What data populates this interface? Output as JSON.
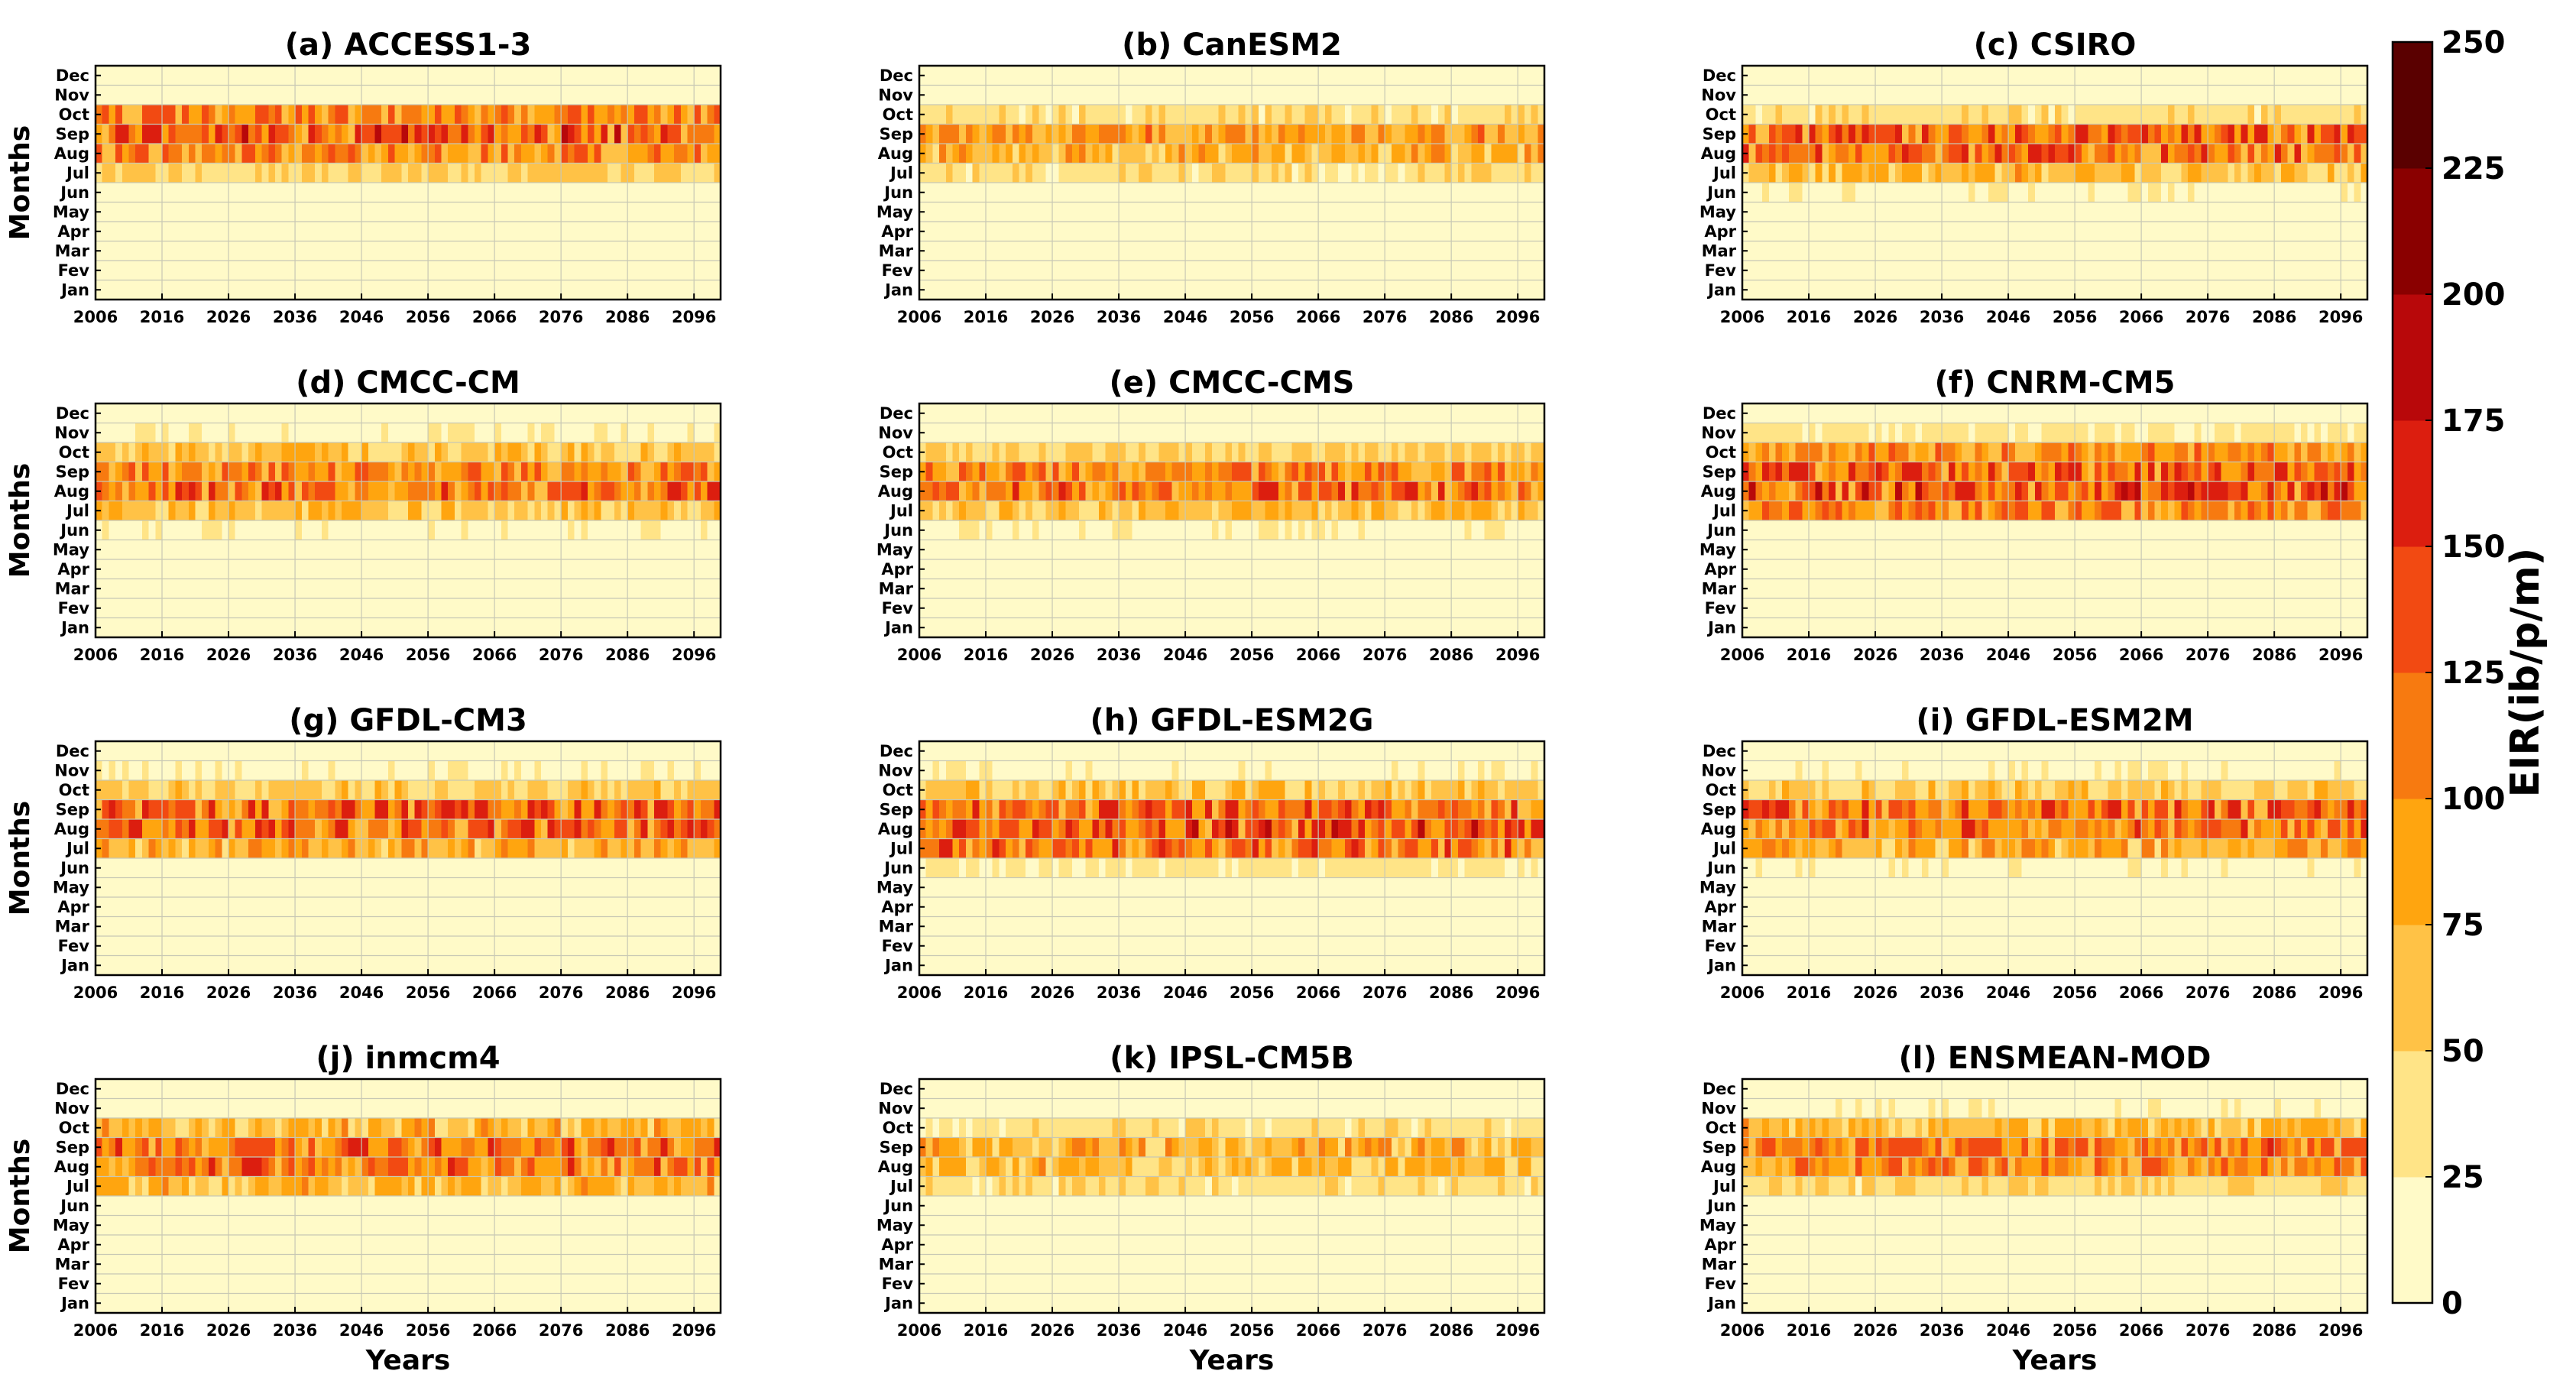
{
  "figure": {
    "x_axis_label": "Years",
    "y_axis_label": "Months",
    "colorbar_label": "EIR(ib/p/m)"
  },
  "chart_data": {
    "type": "heatmap",
    "x_ticks": [
      "2006",
      "2016",
      "2026",
      "2036",
      "2046",
      "2056",
      "2066",
      "2076",
      "2086",
      "2096"
    ],
    "x_range": [
      2006,
      2099
    ],
    "months": [
      "Jan",
      "Fev",
      "Mar",
      "Apr",
      "May",
      "Jun",
      "Jul",
      "Aug",
      "Sep",
      "Oct",
      "Nov",
      "Dec"
    ],
    "colorbar": {
      "ticks": [
        "0",
        "25",
        "50",
        "75",
        "100",
        "125",
        "150",
        "175",
        "200",
        "225",
        "250"
      ],
      "range": [
        0,
        250
      ],
      "bins": [
        {
          "from": 0,
          "to": 25,
          "color": "#fffac8"
        },
        {
          "from": 25,
          "to": 50,
          "color": "#ffe487"
        },
        {
          "from": 50,
          "to": 75,
          "color": "#ffc246"
        },
        {
          "from": 75,
          "to": 100,
          "color": "#ffa50f"
        },
        {
          "from": 100,
          "to": 125,
          "color": "#f77a10"
        },
        {
          "from": 125,
          "to": 150,
          "color": "#f24a12"
        },
        {
          "from": 150,
          "to": 175,
          "color": "#dc1e0f"
        },
        {
          "from": 175,
          "to": 200,
          "color": "#b8080a"
        },
        {
          "from": 200,
          "to": 225,
          "color": "#8a0000"
        },
        {
          "from": 225,
          "to": 250,
          "color": "#5a0000"
        }
      ]
    },
    "panels": [
      {
        "title": "(a) ACCESS1-3",
        "monthly_typical_eir": {
          "Jan": 5,
          "Fev": 5,
          "Mar": 5,
          "Apr": 5,
          "May": 5,
          "Jun": 8,
          "Jul": 50,
          "Aug": 100,
          "Sep": 125,
          "Oct": 100,
          "Nov": 15,
          "Dec": 5
        }
      },
      {
        "title": "(b) CanESM2",
        "monthly_typical_eir": {
          "Jan": 5,
          "Fev": 5,
          "Mar": 5,
          "Apr": 5,
          "May": 5,
          "Jun": 10,
          "Jul": 40,
          "Aug": 75,
          "Sep": 90,
          "Oct": 40,
          "Nov": 10,
          "Dec": 5
        }
      },
      {
        "title": "(c) CSIRO",
        "monthly_typical_eir": {
          "Jan": 5,
          "Fev": 5,
          "Mar": 5,
          "Apr": 5,
          "May": 5,
          "Jun": 20,
          "Jul": 70,
          "Aug": 110,
          "Sep": 120,
          "Oct": 40,
          "Nov": 10,
          "Dec": 5
        }
      },
      {
        "title": "(d) CMCC-CM",
        "monthly_typical_eir": {
          "Jan": 5,
          "Fev": 5,
          "Mar": 5,
          "Apr": 5,
          "May": 5,
          "Jun": 20,
          "Jul": 60,
          "Aug": 110,
          "Sep": 100,
          "Oct": 60,
          "Nov": 20,
          "Dec": 5
        }
      },
      {
        "title": "(e) CMCC-CMS",
        "monthly_typical_eir": {
          "Jan": 5,
          "Fev": 5,
          "Mar": 5,
          "Apr": 5,
          "May": 5,
          "Jun": 20,
          "Jul": 60,
          "Aug": 110,
          "Sep": 100,
          "Oct": 50,
          "Nov": 15,
          "Dec": 5
        }
      },
      {
        "title": "(f) CNRM-CM5",
        "monthly_typical_eir": {
          "Jan": 5,
          "Fev": 5,
          "Mar": 5,
          "Apr": 5,
          "May": 5,
          "Jun": 15,
          "Jul": 100,
          "Aug": 130,
          "Sep": 120,
          "Oct": 90,
          "Nov": 30,
          "Dec": 5
        }
      },
      {
        "title": "(g) GFDL-CM3",
        "monthly_typical_eir": {
          "Jan": 5,
          "Fev": 5,
          "Mar": 5,
          "Apr": 5,
          "May": 5,
          "Jun": 15,
          "Jul": 75,
          "Aug": 115,
          "Sep": 120,
          "Oct": 55,
          "Nov": 20,
          "Dec": 5
        }
      },
      {
        "title": "(h) GFDL-ESM2G",
        "monthly_typical_eir": {
          "Jan": 5,
          "Fev": 5,
          "Mar": 5,
          "Apr": 5,
          "May": 5,
          "Jun": 30,
          "Jul": 110,
          "Aug": 130,
          "Sep": 120,
          "Oct": 60,
          "Nov": 20,
          "Dec": 5
        }
      },
      {
        "title": "(i) GFDL-ESM2M",
        "monthly_typical_eir": {
          "Jan": 5,
          "Fev": 5,
          "Mar": 5,
          "Apr": 5,
          "May": 5,
          "Jun": 20,
          "Jul": 80,
          "Aug": 110,
          "Sep": 120,
          "Oct": 55,
          "Nov": 20,
          "Dec": 5
        }
      },
      {
        "title": "(j) inmcm4",
        "monthly_typical_eir": {
          "Jan": 5,
          "Fev": 5,
          "Mar": 5,
          "Apr": 5,
          "May": 5,
          "Jun": 15,
          "Jul": 70,
          "Aug": 110,
          "Sep": 110,
          "Oct": 70,
          "Nov": 15,
          "Dec": 5
        }
      },
      {
        "title": "(k) IPSL-CM5B",
        "monthly_typical_eir": {
          "Jan": 5,
          "Fev": 5,
          "Mar": 5,
          "Apr": 5,
          "May": 5,
          "Jun": 10,
          "Jul": 40,
          "Aug": 70,
          "Sep": 80,
          "Oct": 40,
          "Nov": 15,
          "Dec": 5
        }
      },
      {
        "title": "(l) ENSMEAN-MOD",
        "monthly_typical_eir": {
          "Jan": 5,
          "Fev": 5,
          "Mar": 5,
          "Apr": 5,
          "May": 5,
          "Jun": 15,
          "Jul": 45,
          "Aug": 95,
          "Sep": 105,
          "Oct": 70,
          "Nov": 20,
          "Dec": 5
        }
      }
    ]
  }
}
